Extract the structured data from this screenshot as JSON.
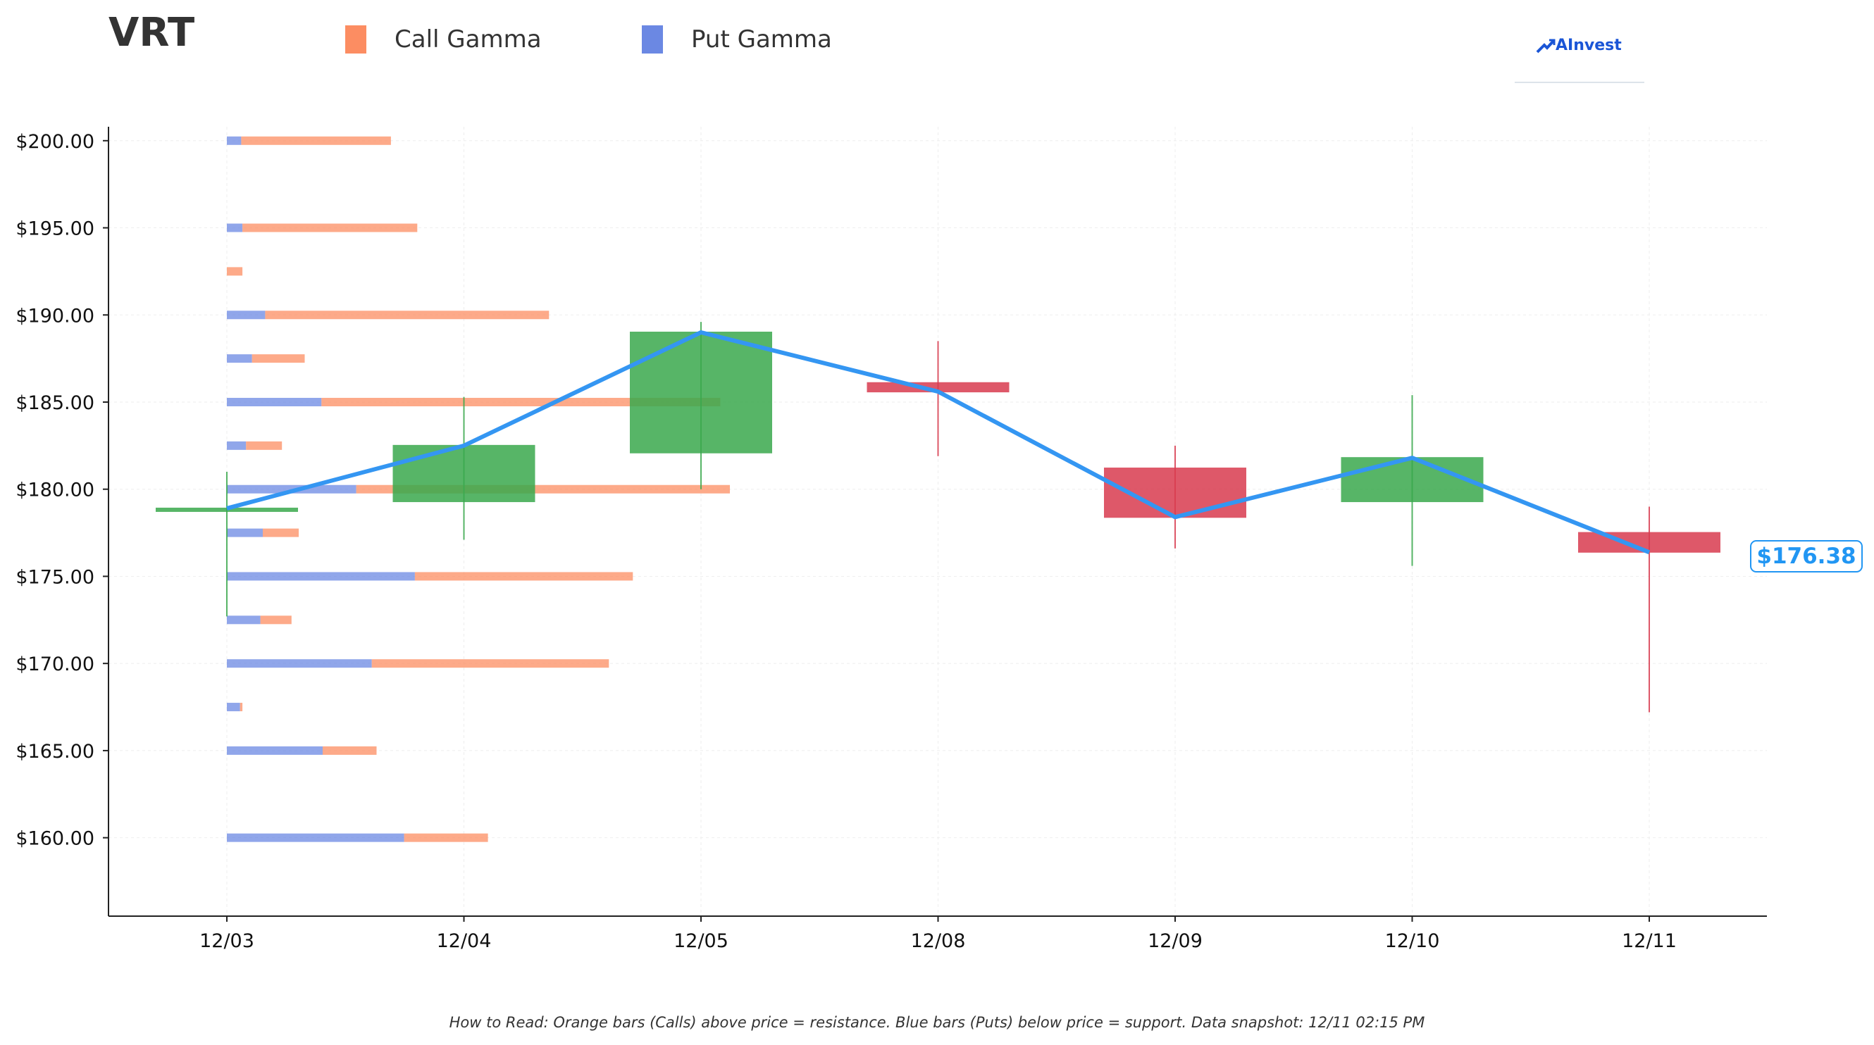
{
  "header": {
    "ticker": "VRT",
    "legend": [
      {
        "label": "Call Gamma",
        "color": "#fc8d62"
      },
      {
        "label": "Put Gamma",
        "color": "#6b88e3"
      }
    ],
    "brand": "AInvest"
  },
  "footer": {
    "note": "How to Read: Orange bars (Calls) above price = resistance. Blue bars (Puts) below price = support. Data snapshot: 12/11 02:15 PM"
  },
  "price_badge": "$176.38",
  "chart_data": {
    "type": "candlestick_gamma",
    "title": "VRT",
    "categories": [
      "12/03",
      "12/04",
      "12/05",
      "12/08",
      "12/09",
      "12/10",
      "12/11"
    ],
    "ylim": [
      155.5,
      200.8
    ],
    "yticks": [
      160,
      165,
      170,
      175,
      180,
      185,
      190,
      195,
      200
    ],
    "ytick_labels": [
      "$160.00",
      "$165.00",
      "$170.00",
      "$175.00",
      "$180.00",
      "$185.00",
      "$190.00",
      "$195.00",
      "$200.00"
    ],
    "grid": true,
    "colors": {
      "up": "#3aa94d",
      "down": "#d93c4f",
      "line": "#3496f2",
      "call": "#fc8d62",
      "put": "#6b88e3"
    },
    "candles": [
      {
        "date": "12/03",
        "open": 178.9,
        "high": 181.0,
        "low": 172.7,
        "close": 178.9
      },
      {
        "date": "12/04",
        "open": 179.3,
        "high": 185.3,
        "low": 177.1,
        "close": 182.5
      },
      {
        "date": "12/05",
        "open": 182.1,
        "high": 189.6,
        "low": 180.0,
        "close": 189.0
      },
      {
        "date": "12/08",
        "open": 186.1,
        "high": 188.5,
        "low": 181.9,
        "close": 185.6
      },
      {
        "date": "12/09",
        "open": 181.2,
        "high": 182.5,
        "low": 176.6,
        "close": 178.4
      },
      {
        "date": "12/10",
        "open": 179.3,
        "high": 185.4,
        "low": 175.6,
        "close": 181.8
      },
      {
        "date": "12/11",
        "open": 177.5,
        "high": 179.0,
        "low": 167.2,
        "close": 176.4
      }
    ],
    "close_line": [
      178.9,
      182.5,
      189.0,
      185.6,
      178.4,
      181.8,
      176.38
    ],
    "last_price": 176.38,
    "gamma": [
      {
        "strike": 200.0,
        "put": 1.2,
        "call": 12.5
      },
      {
        "strike": 195.0,
        "put": 1.3,
        "call": 14.6
      },
      {
        "strike": 192.5,
        "put": 0.0,
        "call": 1.3
      },
      {
        "strike": 190.0,
        "put": 3.2,
        "call": 23.7
      },
      {
        "strike": 187.5,
        "put": 2.1,
        "call": 4.4
      },
      {
        "strike": 185.0,
        "put": 7.9,
        "call": 33.3
      },
      {
        "strike": 182.5,
        "put": 1.6,
        "call": 3.0
      },
      {
        "strike": 180.0,
        "put": 10.8,
        "call": 31.2
      },
      {
        "strike": 177.5,
        "put": 3.0,
        "call": 3.0
      },
      {
        "strike": 175.0,
        "put": 15.7,
        "call": 18.2
      },
      {
        "strike": 172.5,
        "put": 2.8,
        "call": 2.6
      },
      {
        "strike": 170.0,
        "put": 12.1,
        "call": 19.8
      },
      {
        "strike": 167.5,
        "put": 1.1,
        "call": 0.2
      },
      {
        "strike": 165.0,
        "put": 8.0,
        "call": 4.5
      },
      {
        "strike": 160.0,
        "put": 14.8,
        "call": 7.0
      }
    ],
    "gamma_scale_max": 50
  }
}
